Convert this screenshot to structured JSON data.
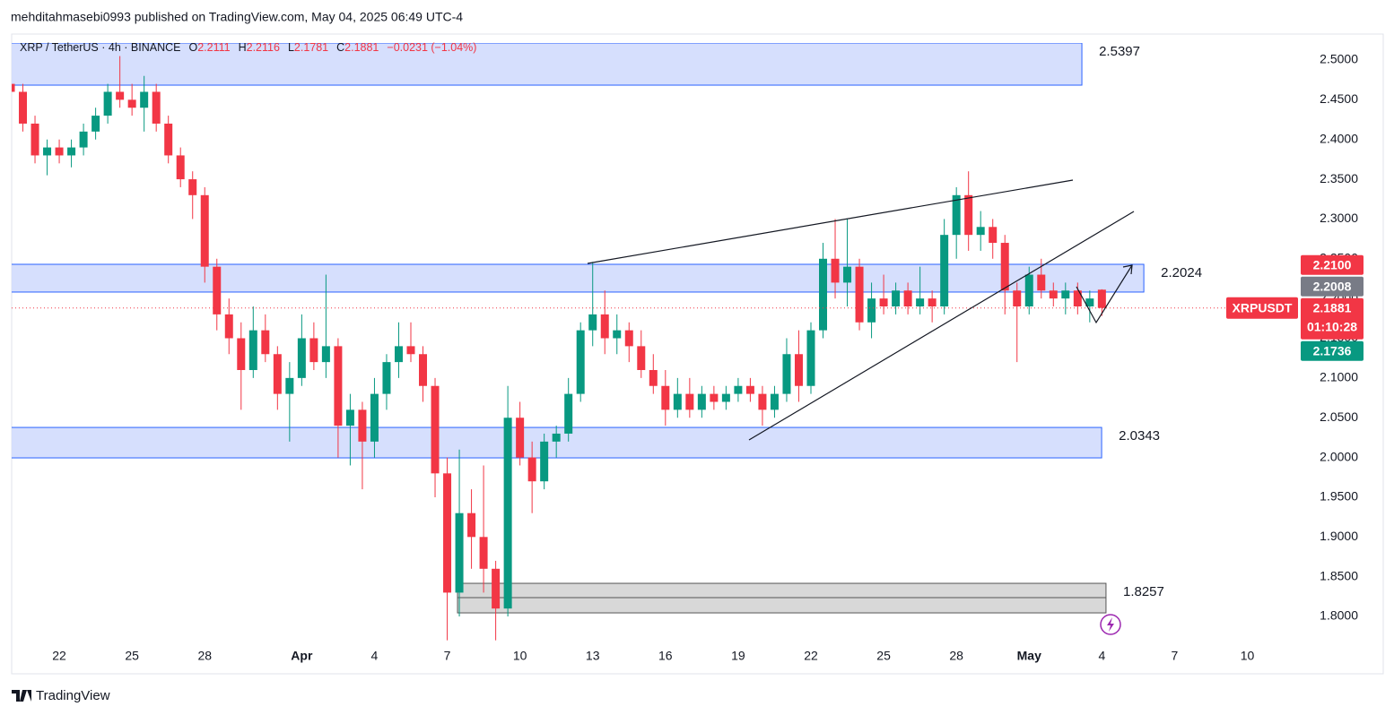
{
  "header": {
    "text": "mehditahmasebi0993 published on TradingView.com, May 04, 2025 06:49 UTC-4"
  },
  "chart_data": {
    "type": "candlestick",
    "legend": {
      "symbol": "XRP / TetherUS · 4h · BINANCE",
      "fields": [
        {
          "key": "O",
          "value": 2.2111
        },
        {
          "key": "H",
          "value": 2.2116
        },
        {
          "key": "L",
          "value": 2.1781
        },
        {
          "key": "C",
          "value": 2.1881
        }
      ],
      "change": "−0.0231 (−1.04%)"
    },
    "up_color": "#089981",
    "down_color": "#f23645",
    "grid": false,
    "ylim": [
      1.7696,
      2.5214
    ],
    "yticks": [
      {
        "value": 2.5,
        "label": "2.5000"
      },
      {
        "value": 2.45,
        "label": "2.4500"
      },
      {
        "value": 2.4,
        "label": "2.4000"
      },
      {
        "value": 2.35,
        "label": "2.3500"
      },
      {
        "value": 2.3,
        "label": "2.3000"
      },
      {
        "value": 2.25,
        "label": "2.2500"
      },
      {
        "value": 2.2,
        "label": "2.2000"
      },
      {
        "value": 2.15,
        "label": "2.1500"
      },
      {
        "value": 2.1,
        "label": "2.1000"
      },
      {
        "value": 2.05,
        "label": "2.0500"
      },
      {
        "value": 2.0,
        "label": "2.0000"
      },
      {
        "value": 1.95,
        "label": "1.9500"
      },
      {
        "value": 1.9,
        "label": "1.9000"
      },
      {
        "value": 1.85,
        "label": "1.8500"
      },
      {
        "value": 1.8,
        "label": "1.8000"
      }
    ],
    "categories": [
      null,
      null,
      null,
      null,
      "22",
      null,
      null,
      null,
      null,
      null,
      "25",
      null,
      null,
      null,
      null,
      null,
      "28",
      null,
      null,
      null,
      null,
      null,
      null,
      null,
      "Apr",
      null,
      null,
      null,
      null,
      null,
      "4",
      null,
      null,
      null,
      null,
      null,
      "7",
      null,
      null,
      null,
      null,
      null,
      "10",
      null,
      null,
      null,
      null,
      null,
      "13",
      null,
      null,
      null,
      null,
      null,
      "16",
      null,
      null,
      null,
      null,
      null,
      "19",
      null,
      null,
      null,
      null,
      null,
      "22",
      null,
      null,
      null,
      null,
      null,
      "25",
      null,
      null,
      null,
      null,
      null,
      "28",
      null,
      null,
      null,
      null,
      null,
      "May",
      null,
      null,
      null,
      null,
      null,
      "4",
      null,
      null,
      null,
      null,
      null,
      "7",
      null,
      null,
      null,
      null,
      null,
      "10",
      null,
      null,
      null
    ],
    "values": [
      [
        2.47,
        2.52,
        2.45,
        2.46
      ],
      [
        2.46,
        2.47,
        2.41,
        2.42
      ],
      [
        2.42,
        2.43,
        2.37,
        2.38
      ],
      [
        2.38,
        2.4,
        2.355,
        2.39
      ],
      [
        2.39,
        2.4,
        2.37,
        2.38
      ],
      [
        2.38,
        2.4,
        2.365,
        2.39
      ],
      [
        2.39,
        2.42,
        2.38,
        2.41
      ],
      [
        2.41,
        2.44,
        2.4,
        2.43
      ],
      [
        2.43,
        2.47,
        2.42,
        2.46
      ],
      [
        2.46,
        2.505,
        2.44,
        2.45
      ],
      [
        2.45,
        2.47,
        2.43,
        2.44
      ],
      [
        2.44,
        2.48,
        2.41,
        2.46
      ],
      [
        2.46,
        2.47,
        2.41,
        2.42
      ],
      [
        2.42,
        2.43,
        2.37,
        2.38
      ],
      [
        2.38,
        2.39,
        2.34,
        2.35
      ],
      [
        2.35,
        2.36,
        2.3,
        2.33
      ],
      [
        2.33,
        2.34,
        2.22,
        2.24
      ],
      [
        2.24,
        2.25,
        2.16,
        2.18
      ],
      [
        2.18,
        2.2,
        2.13,
        2.15
      ],
      [
        2.15,
        2.17,
        2.06,
        2.11
      ],
      [
        2.11,
        2.19,
        2.1,
        2.16
      ],
      [
        2.16,
        2.18,
        2.12,
        2.13
      ],
      [
        2.13,
        2.14,
        2.06,
        2.08
      ],
      [
        2.08,
        2.12,
        2.02,
        2.1
      ],
      [
        2.1,
        2.18,
        2.09,
        2.15
      ],
      [
        2.15,
        2.17,
        2.11,
        2.12
      ],
      [
        2.12,
        2.23,
        2.1,
        2.14
      ],
      [
        2.14,
        2.15,
        2.0,
        2.04
      ],
      [
        2.04,
        2.08,
        1.99,
        2.06
      ],
      [
        2.06,
        2.07,
        1.96,
        2.02
      ],
      [
        2.02,
        2.1,
        2.0,
        2.08
      ],
      [
        2.08,
        2.13,
        2.06,
        2.12
      ],
      [
        2.12,
        2.17,
        2.1,
        2.14
      ],
      [
        2.14,
        2.17,
        2.12,
        2.13
      ],
      [
        2.13,
        2.14,
        2.07,
        2.09
      ],
      [
        2.09,
        2.1,
        1.95,
        1.98
      ],
      [
        1.98,
        2.0,
        1.77,
        1.83
      ],
      [
        1.83,
        2.01,
        1.8,
        1.93
      ],
      [
        1.93,
        1.96,
        1.86,
        1.9
      ],
      [
        1.9,
        1.99,
        1.83,
        1.86
      ],
      [
        1.86,
        1.87,
        1.77,
        1.81
      ],
      [
        1.81,
        2.09,
        1.8,
        2.05
      ],
      [
        2.05,
        2.07,
        1.99,
        2.0
      ],
      [
        2.0,
        2.02,
        1.93,
        1.97
      ],
      [
        1.97,
        2.03,
        1.96,
        2.02
      ],
      [
        2.02,
        2.04,
        2.0,
        2.03
      ],
      [
        2.03,
        2.1,
        2.02,
        2.08
      ],
      [
        2.08,
        2.17,
        2.07,
        2.16
      ],
      [
        2.16,
        2.246,
        2.14,
        2.18
      ],
      [
        2.18,
        2.21,
        2.13,
        2.15
      ],
      [
        2.15,
        2.18,
        2.13,
        2.16
      ],
      [
        2.16,
        2.17,
        2.12,
        2.14
      ],
      [
        2.14,
        2.16,
        2.1,
        2.11
      ],
      [
        2.11,
        2.13,
        2.08,
        2.09
      ],
      [
        2.09,
        2.11,
        2.04,
        2.06
      ],
      [
        2.06,
        2.1,
        2.05,
        2.08
      ],
      [
        2.08,
        2.1,
        2.05,
        2.06
      ],
      [
        2.06,
        2.09,
        2.05,
        2.08
      ],
      [
        2.08,
        2.09,
        2.06,
        2.07
      ],
      [
        2.07,
        2.09,
        2.06,
        2.08
      ],
      [
        2.08,
        2.1,
        2.07,
        2.09
      ],
      [
        2.09,
        2.1,
        2.07,
        2.08
      ],
      [
        2.08,
        2.09,
        2.04,
        2.06
      ],
      [
        2.06,
        2.09,
        2.05,
        2.08
      ],
      [
        2.08,
        2.15,
        2.07,
        2.13
      ],
      [
        2.13,
        2.16,
        2.07,
        2.09
      ],
      [
        2.09,
        2.17,
        2.08,
        2.16
      ],
      [
        2.16,
        2.27,
        2.15,
        2.25
      ],
      [
        2.25,
        2.3,
        2.2,
        2.22
      ],
      [
        2.22,
        2.3,
        2.19,
        2.24
      ],
      [
        2.24,
        2.25,
        2.16,
        2.17
      ],
      [
        2.17,
        2.22,
        2.15,
        2.2
      ],
      [
        2.2,
        2.23,
        2.18,
        2.19
      ],
      [
        2.19,
        2.22,
        2.18,
        2.21
      ],
      [
        2.21,
        2.22,
        2.18,
        2.19
      ],
      [
        2.19,
        2.24,
        2.18,
        2.2
      ],
      [
        2.2,
        2.21,
        2.17,
        2.19
      ],
      [
        2.19,
        2.3,
        2.18,
        2.28
      ],
      [
        2.28,
        2.34,
        2.25,
        2.33
      ],
      [
        2.33,
        2.36,
        2.26,
        2.28
      ],
      [
        2.28,
        2.31,
        2.26,
        2.29
      ],
      [
        2.29,
        2.3,
        2.25,
        2.27
      ],
      [
        2.27,
        2.28,
        2.18,
        2.21
      ],
      [
        2.21,
        2.22,
        2.12,
        2.19
      ],
      [
        2.19,
        2.24,
        2.18,
        2.23
      ],
      [
        2.23,
        2.25,
        2.2,
        2.21
      ],
      [
        2.21,
        2.22,
        2.19,
        2.2
      ],
      [
        2.2,
        2.22,
        2.18,
        2.21
      ],
      [
        2.21,
        2.22,
        2.18,
        2.19
      ],
      [
        2.19,
        2.21,
        2.17,
        2.2
      ],
      [
        2.2111,
        2.2116,
        2.1781,
        2.1881
      ],
      null,
      null,
      null,
      null,
      null,
      null,
      null,
      null,
      null,
      null,
      null,
      null,
      null,
      null,
      null
    ],
    "zones": [
      {
        "label": 2.5397,
        "top": 2.5397,
        "bottom": 2.4684,
        "x_from": 0,
        "x_to": 88.35,
        "color": "#d1dcfd"
      },
      {
        "label": 2.2024,
        "top": 2.243,
        "bottom": 2.2081,
        "x_from": 0,
        "x_to": 93.46,
        "color": "#d1dcfd"
      },
      {
        "label": 2.0343,
        "top": 2.0378,
        "bottom": 1.9995,
        "x_from": 0,
        "x_to": 89.98,
        "color": "#d1dcfd"
      },
      {
        "label": 1.8257,
        "top": 1.8417,
        "bottom": 1.8045,
        "mid": 1.8237,
        "x_from": 36.85,
        "x_to": 90.34,
        "color": "#d4d4d4"
      }
    ],
    "price_tags": [
      {
        "label": "2.2100",
        "value": 2.21,
        "color": "#f23645"
      },
      {
        "label": "2.2008",
        "value": 2.2008,
        "color": "#787b86"
      },
      {
        "label": "2.1881",
        "value": 2.1881,
        "color": "#f23645",
        "name": "XRPUSDT",
        "countdown": "01:10:28"
      },
      {
        "label": "2.1736",
        "value": 2.1736,
        "color": "#089981"
      }
    ]
  },
  "footer": {
    "brand": "TradingView"
  }
}
